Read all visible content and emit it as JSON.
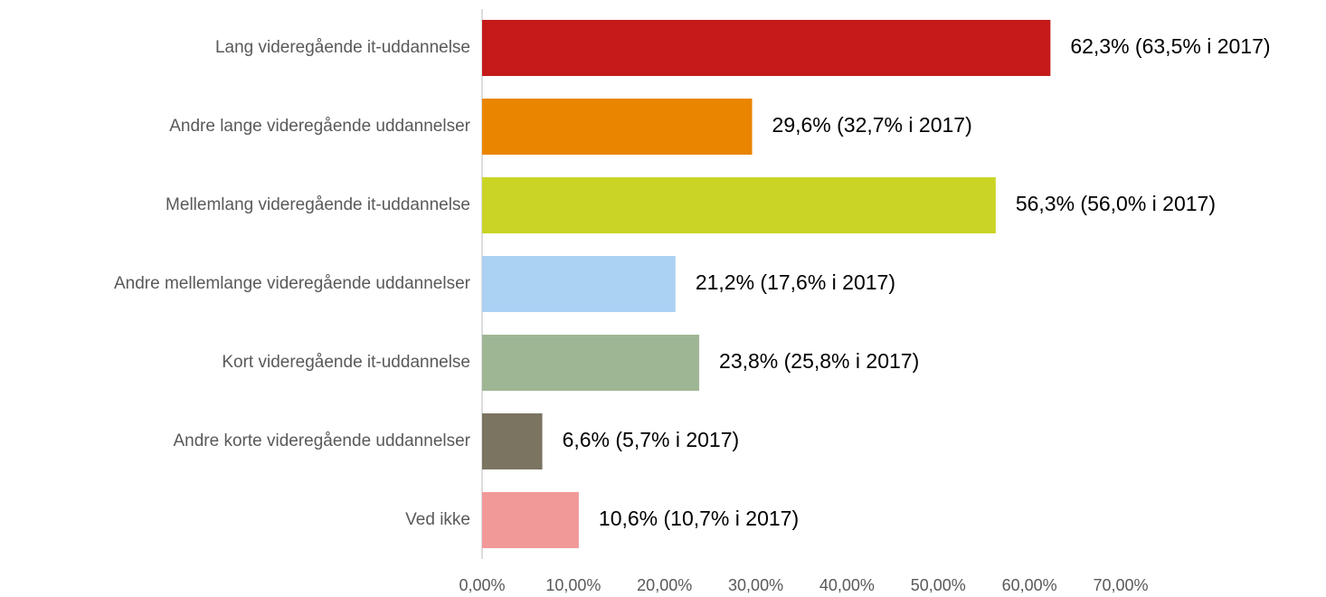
{
  "chart_data": {
    "type": "bar",
    "orientation": "horizontal",
    "categories": [
      "Lang videregående it-uddannelse",
      "Andre lange videregående uddannelser",
      "Mellemlang videregående it-uddannelse",
      "Andre mellemlange videregående uddannelser",
      "Kort videregående it-uddannelse",
      "Andre korte videregående uddannelser",
      "Ved ikke"
    ],
    "values": [
      62.3,
      29.6,
      56.3,
      21.2,
      23.8,
      6.6,
      10.6
    ],
    "value_labels": [
      "62,3% (63,5% i 2017)",
      "29,6% (32,7% i 2017)",
      "56,3% (56,0% i 2017)",
      "21,2% (17,6% i 2017)",
      "23,8% (25,8% i 2017)",
      "6,6% (5,7% i 2017)",
      "10,6% (10,7% i 2017)"
    ],
    "colors": [
      "#c41a1a",
      "#ea8500",
      "#cad424",
      "#abd1f3",
      "#9fb695",
      "#7b7461",
      "#f19999"
    ],
    "xlim": [
      0,
      70
    ],
    "xticks": [
      {
        "value": 0,
        "label": "0,00%"
      },
      {
        "value": 10,
        "label": "10,00%"
      },
      {
        "value": 20,
        "label": "20,00%"
      },
      {
        "value": 30,
        "label": "30,00%"
      },
      {
        "value": 40,
        "label": "40,00%"
      },
      {
        "value": 50,
        "label": "50,00%"
      },
      {
        "value": 60,
        "label": "60,00%"
      },
      {
        "value": 70,
        "label": "70,00%"
      }
    ],
    "grid": false
  }
}
